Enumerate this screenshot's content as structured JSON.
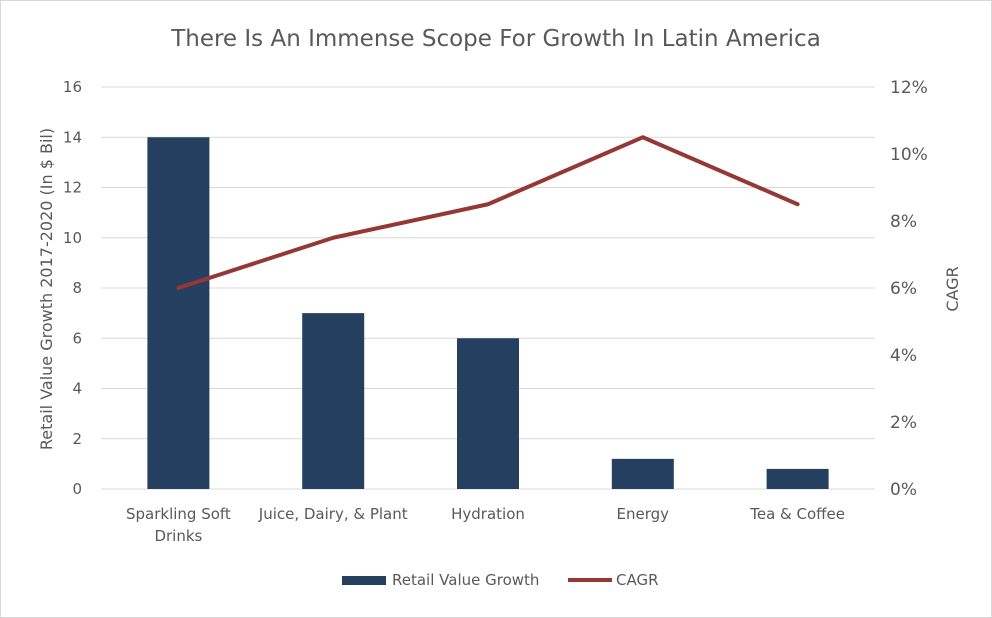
{
  "chart_data": {
    "type": "bar+line",
    "title": "There Is An Immense Scope For Growth In Latin America",
    "categories": [
      [
        "Sparkling Soft",
        "Drinks"
      ],
      [
        "Juice, Dairy, & Plant"
      ],
      [
        "Hydration"
      ],
      [
        "Energy"
      ],
      [
        "Tea & Coffee"
      ]
    ],
    "series": [
      {
        "name": "Retail Value Growth",
        "type": "bar",
        "axis": "left",
        "color": "#243f60",
        "values": [
          14,
          7,
          6,
          1.2,
          0.8
        ]
      },
      {
        "name": "CAGR",
        "type": "line",
        "axis": "right",
        "color": "#953735",
        "values": [
          6,
          7.5,
          8.5,
          10.5,
          8.5
        ]
      }
    ],
    "ylabel": "Retail Value Growth 2017-2020 (In $ Bil)",
    "ylabel_right": "CAGR",
    "ylim": [
      0,
      16
    ],
    "ylim_right": [
      0,
      12
    ],
    "yticks": [
      0,
      2,
      4,
      6,
      8,
      10,
      12,
      14,
      16
    ],
    "yticks_right": [
      "0%",
      "2%",
      "4%",
      "6%",
      "8%",
      "10%",
      "12%"
    ],
    "grid": true,
    "legend_position": "bottom"
  }
}
